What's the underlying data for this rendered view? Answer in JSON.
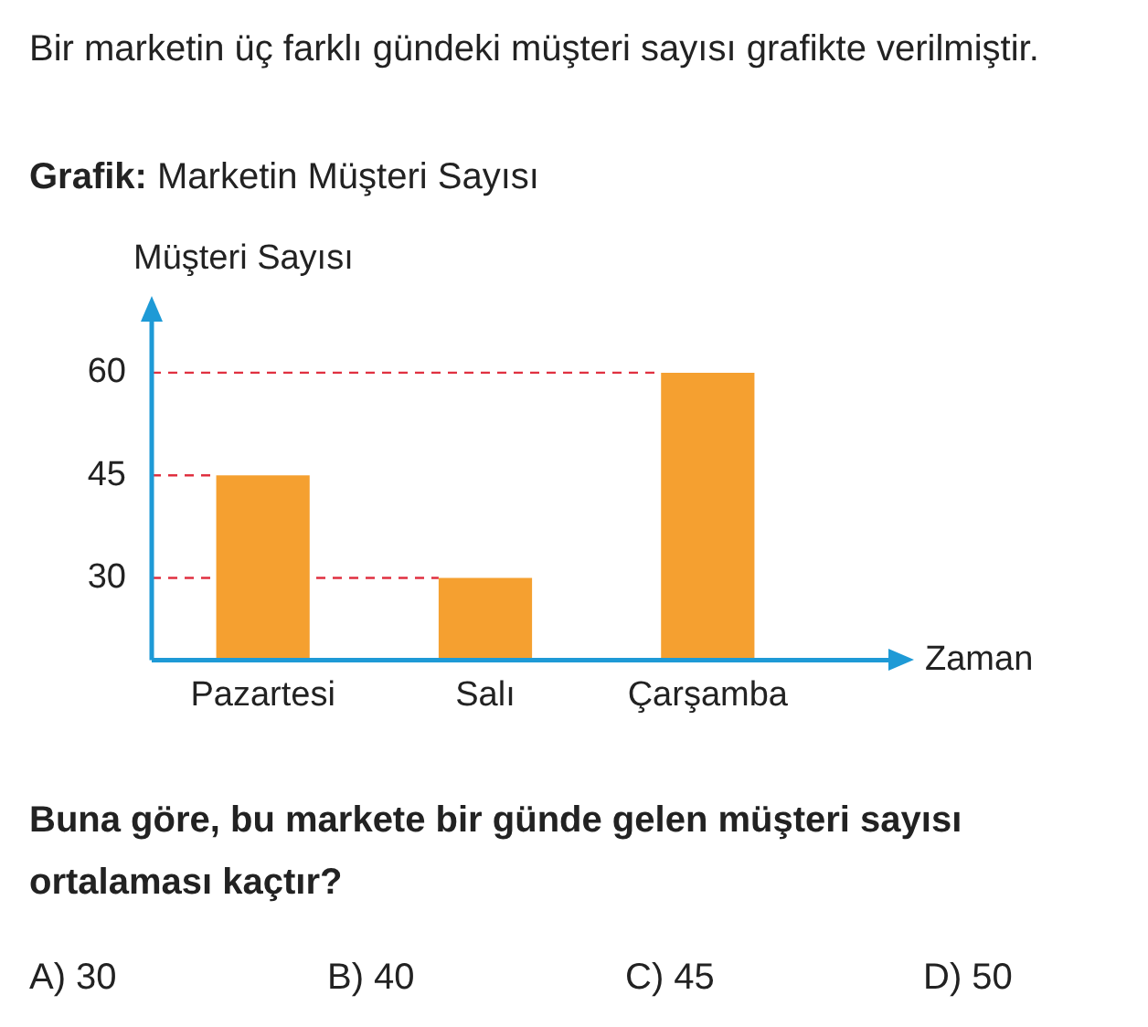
{
  "chart_data": {
    "type": "bar",
    "title": "Grafik: Marketin Müşteri Sayısı",
    "xlabel": "Zaman",
    "ylabel": "Müşteri Sayısı",
    "categories": [
      "Pazartesi",
      "Salı",
      "Çarşamba"
    ],
    "values": [
      45,
      30,
      60
    ],
    "color": "#f5a030",
    "ylim": [
      18,
      68
    ],
    "yticks": [
      30,
      45,
      60
    ],
    "grid": false,
    "legend": false,
    "ref_lines": [
      {
        "axis": "y",
        "value": 60,
        "color": "#e03040",
        "line_style": "dashed"
      },
      {
        "axis": "y",
        "value": 45,
        "color": "#e03040",
        "line_style": "dashed"
      },
      {
        "axis": "y",
        "value": 30,
        "color": "#e03040",
        "line_style": "dashed"
      }
    ],
    "annotations": [
      "Bir marketin üç farklı gündeki müşteri sayısı grafikte verilmiştir.",
      "Buna göre, bu markete bir günde gelen müşteri sayısı ortalaması kaçtır?",
      "A) 30",
      "B) 40",
      "C) 45",
      "D) 50"
    ]
  }
}
